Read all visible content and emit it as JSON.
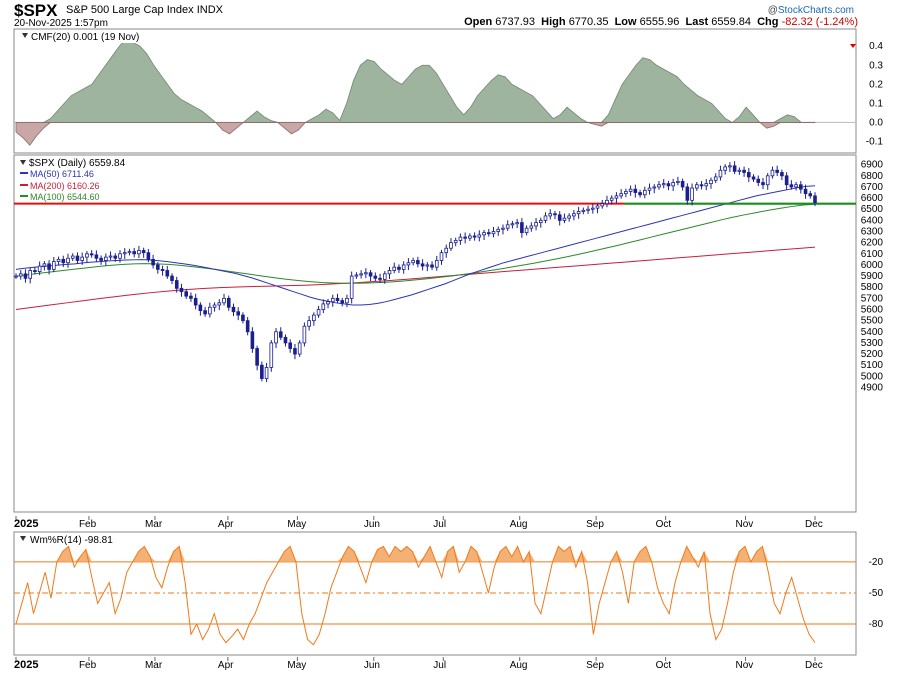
{
  "header": {
    "symbol": "$SPX",
    "name": "S&P 500 Large Cap Index",
    "exchange": "INDX",
    "datetime": "20-Nov-2025 1:57pm",
    "open_label": "Open",
    "open": "6737.93",
    "high_label": "High",
    "high": "6770.35",
    "low_label": "Low",
    "low": "6555.96",
    "last_label": "Last",
    "last": "6559.84",
    "chg_label": "Chg",
    "chg": "-82.32 (-1.24%)",
    "credit_prefix": "@",
    "credit_name": "StockCharts.com"
  },
  "colors": {
    "price": "#1a1f8f",
    "ma50": "#2d34b5",
    "ma200": "#c81e3c",
    "ma100": "#2a8a2a",
    "support_red": "#e01010",
    "support_green": "#1c8c1c",
    "cmf_pos": "#9fb49f",
    "cmf_neg": "#c9a7a7",
    "wm": "#f07a1a",
    "wm_fill": "#f3a866"
  },
  "chart_data": [
    {
      "type": "area",
      "panel": "cmf",
      "title": "CMF(20) 0.001 (19 Nov)",
      "ylim": [
        -0.15,
        0.48
      ],
      "yticks": [
        "0.4",
        "0.3",
        "0.2",
        "0.1",
        "0.0",
        "-0.1"
      ],
      "ytick_values": [
        0.4,
        0.3,
        0.2,
        0.1,
        0.0,
        -0.1
      ],
      "values": [
        -0.05,
        -0.08,
        -0.12,
        -0.07,
        -0.03,
        0.02,
        0.06,
        0.1,
        0.14,
        0.16,
        0.18,
        0.2,
        0.25,
        0.3,
        0.35,
        0.4,
        0.44,
        0.42,
        0.4,
        0.36,
        0.3,
        0.25,
        0.2,
        0.15,
        0.12,
        0.1,
        0.08,
        0.06,
        0.03,
        0.0,
        -0.04,
        -0.06,
        -0.03,
        0.0,
        0.03,
        0.06,
        0.03,
        0.01,
        0.0,
        -0.03,
        -0.06,
        -0.04,
        0.0,
        0.02,
        0.04,
        0.07,
        0.05,
        0.01,
        0.1,
        0.22,
        0.3,
        0.33,
        0.32,
        0.28,
        0.25,
        0.22,
        0.2,
        0.24,
        0.28,
        0.3,
        0.3,
        0.26,
        0.2,
        0.14,
        0.08,
        0.04,
        0.08,
        0.14,
        0.18,
        0.22,
        0.25,
        0.24,
        0.2,
        0.18,
        0.16,
        0.14,
        0.1,
        0.06,
        0.02,
        0.04,
        0.08,
        0.05,
        0.02,
        0.0,
        -0.01,
        -0.02,
        0.04,
        0.12,
        0.2,
        0.25,
        0.3,
        0.34,
        0.33,
        0.3,
        0.28,
        0.26,
        0.24,
        0.2,
        0.17,
        0.14,
        0.12,
        0.1,
        0.06,
        0.02,
        0.0,
        0.03,
        0.08,
        0.04,
        0.0,
        -0.03,
        -0.02,
        0.02,
        0.04,
        0.03,
        0.0,
        -0.001,
        0.001
      ]
    },
    {
      "type": "candlestick",
      "panel": "price",
      "title": "$SPX (Daily) 6559.84",
      "legend": [
        {
          "label": "MA(50) 6711.46",
          "color": "#2d34b5"
        },
        {
          "label": "MA(200) 6160.26",
          "color": "#c81e3c"
        },
        {
          "label": "MA(100) 6544.60",
          "color": "#2a8a2a"
        }
      ],
      "ylim": [
        3800,
        6960
      ],
      "yticks": [
        "6900",
        "6800",
        "6700",
        "6600",
        "6500",
        "6400",
        "6300",
        "6200",
        "6100",
        "6000",
        "5900",
        "5800",
        "5700",
        "5600",
        "5500",
        "5400",
        "5300",
        "5200",
        "5100",
        "5000",
        "4900"
      ],
      "ytick_values": [
        6900,
        6800,
        6700,
        6600,
        6500,
        6400,
        6300,
        6200,
        6100,
        6000,
        5900,
        5800,
        5700,
        5600,
        5500,
        5400,
        5300,
        5200,
        5100,
        5000,
        4900
      ],
      "closes": [
        5900,
        5920,
        5880,
        5950,
        5940,
        5990,
        6010,
        5960,
        6030,
        6050,
        6020,
        6060,
        6080,
        6040,
        6070,
        6100,
        6090,
        6060,
        6040,
        6070,
        6080,
        6060,
        6100,
        6110,
        6120,
        6100,
        6130,
        6110,
        6050,
        6000,
        5960,
        5950,
        5900,
        5860,
        5790,
        5760,
        5720,
        5700,
        5640,
        5590,
        5560,
        5620,
        5640,
        5660,
        5700,
        5620,
        5580,
        5550,
        5500,
        5400,
        5250,
        5100,
        4980,
        5080,
        5300,
        5400,
        5350,
        5300,
        5250,
        5200,
        5300,
        5450,
        5500,
        5550,
        5600,
        5650,
        5670,
        5700,
        5680,
        5660,
        5700,
        5900,
        5910,
        5920,
        5930,
        5900,
        5880,
        5870,
        5920,
        5950,
        5980,
        5960,
        6000,
        6020,
        6040,
        6010,
        5990,
        6000,
        5980,
        6040,
        6110,
        6150,
        6200,
        6220,
        6250,
        6240,
        6260,
        6250,
        6270,
        6290,
        6280,
        6300,
        6320,
        6330,
        6360,
        6370,
        6380,
        6290,
        6330,
        6350,
        6380,
        6400,
        6440,
        6460,
        6450,
        6400,
        6420,
        6440,
        6460,
        6480,
        6490,
        6500,
        6510,
        6530,
        6550,
        6580,
        6600,
        6620,
        6640,
        6660,
        6680,
        6650,
        6630,
        6670,
        6690,
        6700,
        6720,
        6730,
        6710,
        6740,
        6750,
        6700,
        6580,
        6690,
        6720,
        6710,
        6730,
        6760,
        6790,
        6850,
        6880,
        6890,
        6840,
        6850,
        6830,
        6790,
        6770,
        6740,
        6720,
        6800,
        6850,
        6830,
        6800,
        6720,
        6700,
        6720,
        6680,
        6640,
        6620,
        6560
      ],
      "ma50": [
        5960,
        5970,
        5978,
        5985,
        5992,
        5998,
        6005,
        6010,
        6018,
        6025,
        6030,
        6036,
        6040,
        6044,
        6046,
        6048,
        6044,
        6038,
        6030,
        6020,
        6010,
        5998,
        5985,
        5970,
        5955,
        5940,
        5925,
        5905,
        5885,
        5860,
        5835,
        5810,
        5785,
        5760,
        5735,
        5710,
        5690,
        5675,
        5660,
        5650,
        5640,
        5640,
        5645,
        5655,
        5670,
        5690,
        5710,
        5730,
        5755,
        5780,
        5805,
        5830,
        5860,
        5890,
        5920,
        5945,
        5970,
        5995,
        6020,
        6040,
        6060,
        6080,
        6100,
        6120,
        6140,
        6160,
        6180,
        6200,
        6220,
        6240,
        6260,
        6280,
        6300,
        6320,
        6340,
        6360,
        6380,
        6400,
        6420,
        6440,
        6460,
        6480,
        6500,
        6520,
        6540,
        6560,
        6580,
        6600,
        6620,
        6635,
        6650,
        6665,
        6680,
        6695,
        6705,
        6711
      ],
      "ma100": [
        5900,
        5912,
        5925,
        5938,
        5950,
        5962,
        5974,
        5986,
        5996,
        6004,
        6010,
        6012,
        6010,
        6005,
        5996,
        5985,
        5972,
        5960,
        5945,
        5930,
        5915,
        5900,
        5885,
        5872,
        5860,
        5850,
        5842,
        5838,
        5836,
        5836,
        5838,
        5842,
        5848,
        5856,
        5866,
        5876,
        5888,
        5900,
        5914,
        5928,
        5944,
        5960,
        5978,
        5996,
        6014,
        6034,
        6054,
        6076,
        6098,
        6122,
        6146,
        6170,
        6196,
        6222,
        6248,
        6274,
        6300,
        6326,
        6352,
        6378,
        6404,
        6428,
        6450,
        6470,
        6490,
        6508,
        6524,
        6538,
        6545
      ],
      "ma200": [
        5600,
        5620,
        5640,
        5660,
        5680,
        5700,
        5718,
        5736,
        5752,
        5766,
        5778,
        5788,
        5796,
        5802,
        5806,
        5810,
        5814,
        5818,
        5824,
        5832,
        5840,
        5850,
        5860,
        5872,
        5884,
        5896,
        5908,
        5920,
        5932,
        5944,
        5956,
        5968,
        5980,
        5992,
        6004,
        6016,
        6028,
        6040,
        6052,
        6064,
        6076,
        6088,
        6100,
        6112,
        6124,
        6136,
        6148,
        6160
      ],
      "support_red": 6550,
      "support_green": 6550
    },
    {
      "type": "line",
      "panel": "williams",
      "title": "Wm%R(14) -98.81",
      "ylim": [
        -108,
        6
      ],
      "yticks": [
        "-20",
        "-50",
        "-80"
      ],
      "ytick_values": [
        -20,
        -50,
        -80
      ],
      "values": [
        -80,
        -60,
        -40,
        -70,
        -50,
        -30,
        -55,
        -20,
        -10,
        -5,
        -25,
        -15,
        -8,
        -35,
        -60,
        -50,
        -40,
        -70,
        -55,
        -30,
        -20,
        -10,
        -5,
        -15,
        -35,
        -45,
        -25,
        -10,
        -5,
        -40,
        -90,
        -80,
        -95,
        -85,
        -70,
        -90,
        -98,
        -92,
        -85,
        -95,
        -80,
        -70,
        -55,
        -40,
        -30,
        -20,
        -10,
        -5,
        -20,
        -70,
        -95,
        -100,
        -90,
        -70,
        -45,
        -30,
        -15,
        -5,
        -10,
        -25,
        -40,
        -20,
        -8,
        -5,
        -15,
        -5,
        -10,
        -5,
        -10,
        -25,
        -15,
        -5,
        -20,
        -35,
        -10,
        -5,
        -30,
        -20,
        -5,
        -10,
        -30,
        -50,
        -25,
        -10,
        -5,
        -15,
        -5,
        -20,
        -10,
        -60,
        -70,
        -45,
        -20,
        -5,
        -10,
        -5,
        -25,
        -10,
        -40,
        -90,
        -60,
        -40,
        -20,
        -10,
        -30,
        -60,
        -20,
        -10,
        -5,
        -20,
        -45,
        -60,
        -70,
        -40,
        -20,
        -5,
        -15,
        -25,
        -10,
        -70,
        -95,
        -85,
        -60,
        -30,
        -10,
        -5,
        -20,
        -10,
        -5,
        -30,
        -60,
        -70,
        -50,
        -35,
        -55,
        -75,
        -90,
        -98
      ]
    }
  ],
  "xaxis": {
    "labels": [
      "2025",
      "Feb",
      "Mar",
      "Apr",
      "May",
      "Jun",
      "Jul",
      "Aug",
      "Sep",
      "Oct",
      "Nov",
      "Dec"
    ],
    "positions": [
      0,
      21,
      40,
      61,
      81,
      103,
      123,
      145,
      167,
      187,
      210,
      230
    ]
  }
}
